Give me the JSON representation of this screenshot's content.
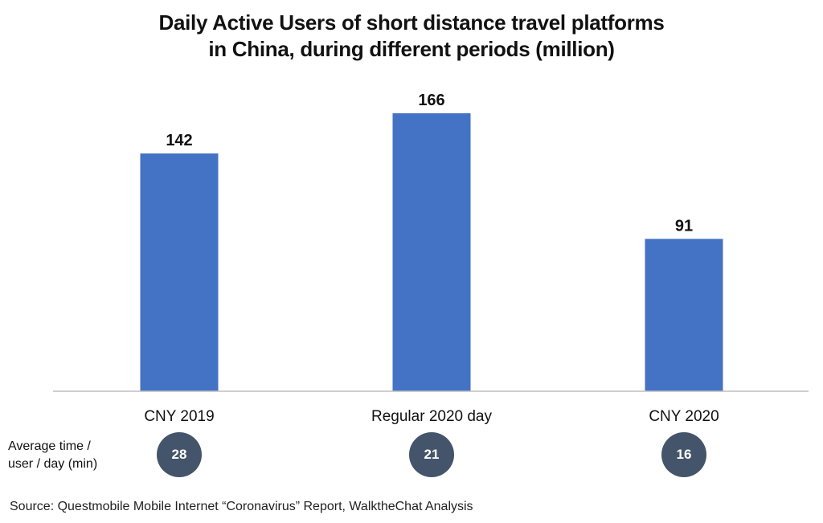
{
  "chart_data": {
    "type": "bar",
    "title_lines": [
      "Daily Active Users of short distance travel platforms",
      "in China, during different periods (million)"
    ],
    "categories": [
      "CNY 2019",
      "Regular 2020 day",
      "CNY 2020"
    ],
    "values": [
      142,
      166,
      91
    ],
    "data_labels": [
      "142",
      "166",
      "91"
    ],
    "ylim": [
      0,
      166
    ],
    "grid": false,
    "xlabel": "",
    "ylabel": ""
  },
  "colors": {
    "bar": "#4472C4",
    "axis": "#BFBFBF",
    "badge": "#44546A"
  },
  "avg_time": {
    "label_lines": [
      "Average time /",
      "user / day (min)"
    ],
    "values": [
      "28",
      "21",
      "16"
    ]
  },
  "source": "Source: Questmobile Mobile Internet “Coronavirus” Report, WalktheChat Analysis"
}
